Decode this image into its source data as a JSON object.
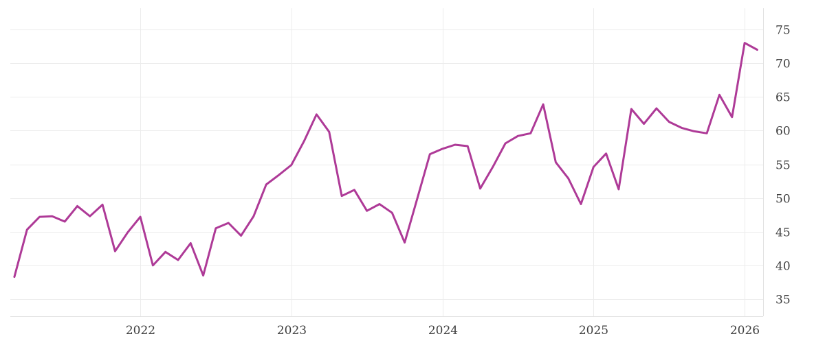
{
  "chart_data": {
    "type": "line",
    "title": "",
    "xlabel": "",
    "ylabel": "",
    "grid": true,
    "legend": false,
    "ylim": [
      32.5,
      78.2
    ],
    "y_ticks": [
      35,
      40,
      45,
      50,
      55,
      60,
      65,
      70,
      75
    ],
    "x_tick_labels": [
      "2022",
      "2023",
      "2024",
      "2025",
      "2026"
    ],
    "x": [
      "2021-03",
      "2021-04",
      "2021-05",
      "2021-06",
      "2021-07",
      "2021-08",
      "2021-09",
      "2021-10",
      "2021-11",
      "2021-12",
      "2022-01",
      "2022-02",
      "2022-03",
      "2022-04",
      "2022-05",
      "2022-06",
      "2022-07",
      "2022-08",
      "2022-09",
      "2022-10",
      "2022-11",
      "2022-12",
      "2023-01",
      "2023-02",
      "2023-03",
      "2023-04",
      "2023-05",
      "2023-06",
      "2023-07",
      "2023-08",
      "2023-09",
      "2023-10",
      "2023-11",
      "2023-12",
      "2024-01",
      "2024-02",
      "2024-03",
      "2024-04",
      "2024-05",
      "2024-06",
      "2024-07",
      "2024-08",
      "2024-09",
      "2024-10",
      "2024-11",
      "2024-12",
      "2025-01",
      "2025-02",
      "2025-03",
      "2025-04",
      "2025-05",
      "2025-06",
      "2025-07",
      "2025-08",
      "2025-09",
      "2025-10",
      "2025-11",
      "2025-12",
      "2026-01",
      "2026-02"
    ],
    "series": [
      {
        "name": "value",
        "color": "#ae3a97",
        "values": [
          38.3,
          45.3,
          47.2,
          47.3,
          46.5,
          48.8,
          47.3,
          49.0,
          42.1,
          44.9,
          47.2,
          40.0,
          42.0,
          40.8,
          43.3,
          38.5,
          45.5,
          46.3,
          44.4,
          47.3,
          52.0,
          53.4,
          54.9,
          58.4,
          62.4,
          59.8,
          50.3,
          51.2,
          48.1,
          49.1,
          47.8,
          43.4,
          49.9,
          56.5,
          57.3,
          57.9,
          57.7,
          51.4,
          54.6,
          58.1,
          59.2,
          59.6,
          63.9,
          55.3,
          52.9,
          49.1,
          54.6,
          56.6,
          51.3,
          63.2,
          61.0,
          63.3,
          61.3,
          60.4,
          59.9,
          59.6,
          65.3,
          62.0,
          73.0,
          72.0
        ]
      }
    ],
    "colors": {
      "line": "#ae3a97",
      "gridline": "#ececec",
      "border": "#e2e2e2",
      "tick_label": "#3e3e3e",
      "background": "#ffffff"
    }
  }
}
